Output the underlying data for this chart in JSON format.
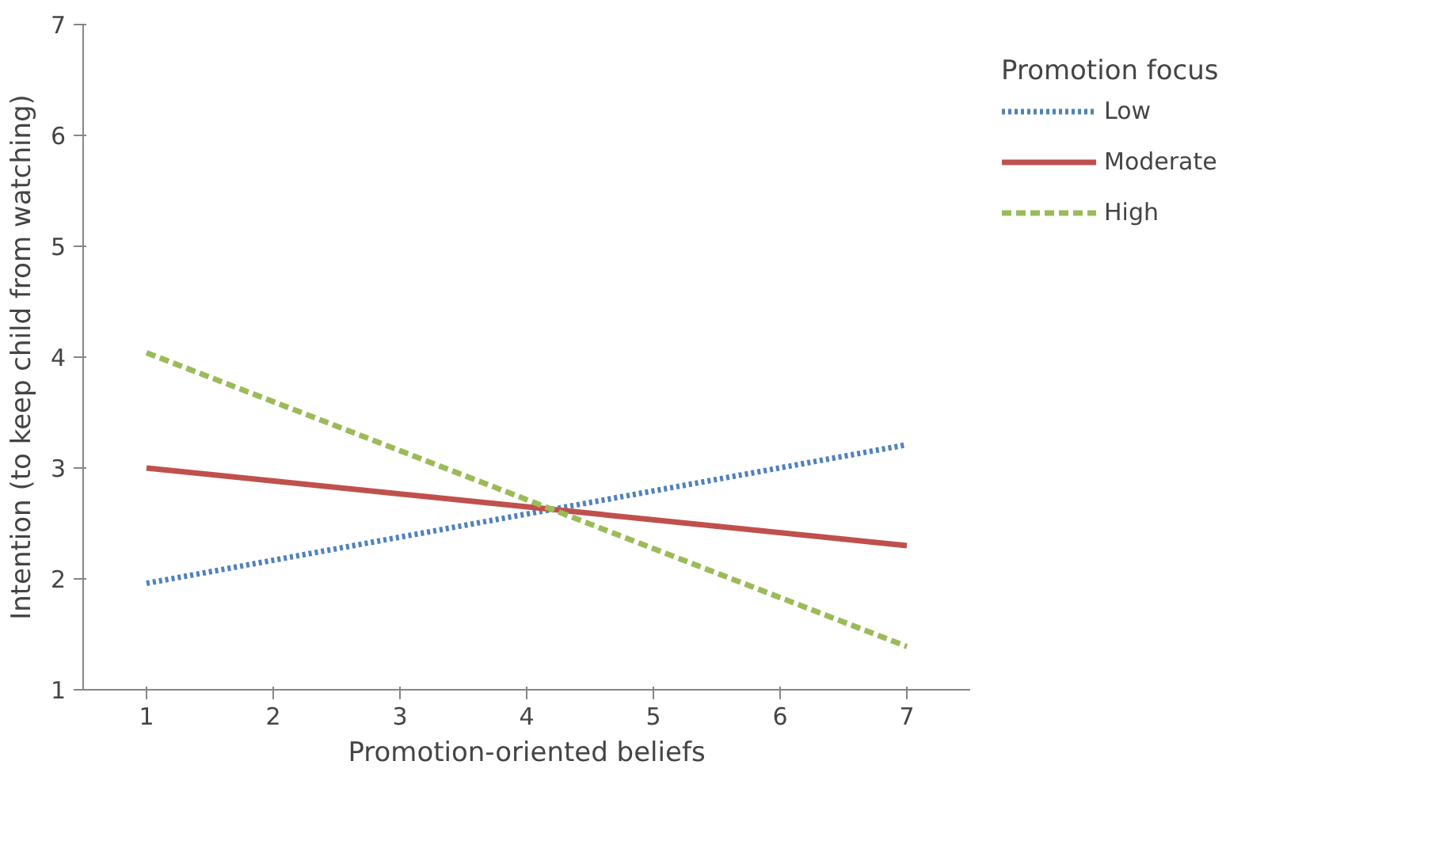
{
  "chart_data": {
    "type": "line",
    "xlabel": "Promotion-oriented beliefs",
    "ylabel": "Intention (to keep child from watching)",
    "legend_title": "Promotion focus",
    "legend": "right",
    "grid": false,
    "marker": "none",
    "xlim": [
      0.5,
      7.5
    ],
    "xticks": [
      1,
      2,
      3,
      4,
      5,
      6,
      7
    ],
    "ylim": [
      1,
      7
    ],
    "yticks": [
      1,
      2,
      3,
      4,
      5,
      6,
      7
    ],
    "x": [
      1,
      7
    ],
    "series": [
      {
        "name": "Low",
        "color": "#4f81bd",
        "values": [
          1.96,
          3.21
        ],
        "line_style": "dotted"
      },
      {
        "name": "Moderate",
        "color": "#c0504d",
        "values": [
          3.0,
          2.3
        ],
        "line_style": "solid"
      },
      {
        "name": "High",
        "color": "#9bbb59",
        "values": [
          4.04,
          1.39
        ],
        "line_style": "dashed"
      }
    ]
  }
}
